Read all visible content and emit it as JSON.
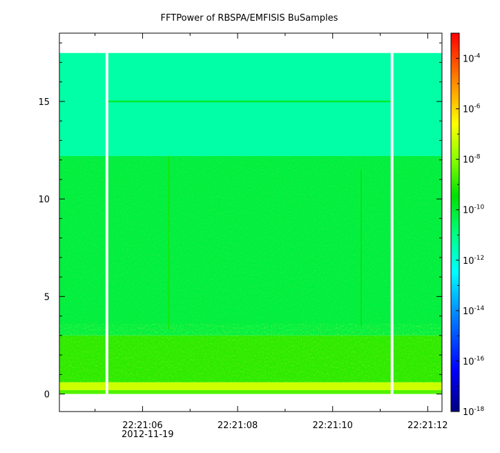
{
  "chart_data": {
    "type": "heatmap",
    "title": "FFTPower of RBSPA/EMFISIS  BuSamples",
    "xlabel": "",
    "ylabel": "",
    "x_axis": {
      "kind": "time",
      "date_label": "2012-11-19",
      "range_seconds": [
        4.25,
        12.3
      ],
      "major_ticks": [
        {
          "value": 6,
          "label": "22:21:06"
        },
        {
          "value": 8,
          "label": "22:21:08"
        },
        {
          "value": 10,
          "label": "22:21:10"
        },
        {
          "value": 12,
          "label": "22:21:12"
        }
      ],
      "minor_ticks": [
        5,
        7,
        9,
        11
      ]
    },
    "y_axis": {
      "range": [
        -0.9,
        18.5
      ],
      "major_ticks": [
        0,
        5,
        10,
        15
      ],
      "minor_ticks": [
        1,
        2,
        3,
        4,
        6,
        7,
        8,
        9,
        11,
        12,
        13,
        14,
        16,
        17,
        18
      ]
    },
    "colorbar": {
      "scale": "log",
      "range": [
        1e-18,
        0.001
      ],
      "tick_labels": [
        {
          "mantissa": "10",
          "exponent": "-18",
          "value": -18
        },
        {
          "mantissa": "10",
          "exponent": "-16",
          "value": -16
        },
        {
          "mantissa": "10",
          "exponent": "-14",
          "value": -14
        },
        {
          "mantissa": "10",
          "exponent": "-12",
          "value": -12
        },
        {
          "mantissa": "10",
          "exponent": "-10",
          "value": -10
        },
        {
          "mantissa": "10",
          "exponent": "-8",
          "value": -8
        },
        {
          "mantissa": "10",
          "exponent": "-6",
          "value": -6
        },
        {
          "mantissa": "10",
          "exponent": "-4",
          "value": -4
        }
      ],
      "colormap": [
        "#000080",
        "#0000ff",
        "#0080ff",
        "#00ffff",
        "#00ff80",
        "#00e000",
        "#80ff00",
        "#ffff00",
        "#ff8000",
        "#ff0000"
      ]
    },
    "data_extent": {
      "y_max": 17.5,
      "gaps_seconds": [
        5.25,
        11.25
      ]
    },
    "bands": [
      {
        "y_from": 12.2,
        "y_to": 17.5,
        "log_power": -11.4
      },
      {
        "y_from": 3.0,
        "y_to": 12.2,
        "log_power": -10.2
      },
      {
        "y_from": 0.6,
        "y_to": 3.0,
        "log_power": -9.0
      },
      {
        "y_from": 0.2,
        "y_to": 0.6,
        "log_power": -7.2
      },
      {
        "y_from": 0.0,
        "y_to": 0.2,
        "log_power": -8.6
      }
    ],
    "features": [
      {
        "kind": "horizontal-line",
        "y": 15.0,
        "x_from": 5.25,
        "x_to": 11.25,
        "log_power": -10.0
      },
      {
        "kind": "vertical-streak",
        "x": 6.55,
        "y_from": 3.3,
        "y_to": 12.2,
        "log_power": -9.2
      },
      {
        "kind": "vertical-streak",
        "x": 10.6,
        "y_from": 3.5,
        "y_to": 11.5,
        "log_power": -9.6
      }
    ]
  }
}
